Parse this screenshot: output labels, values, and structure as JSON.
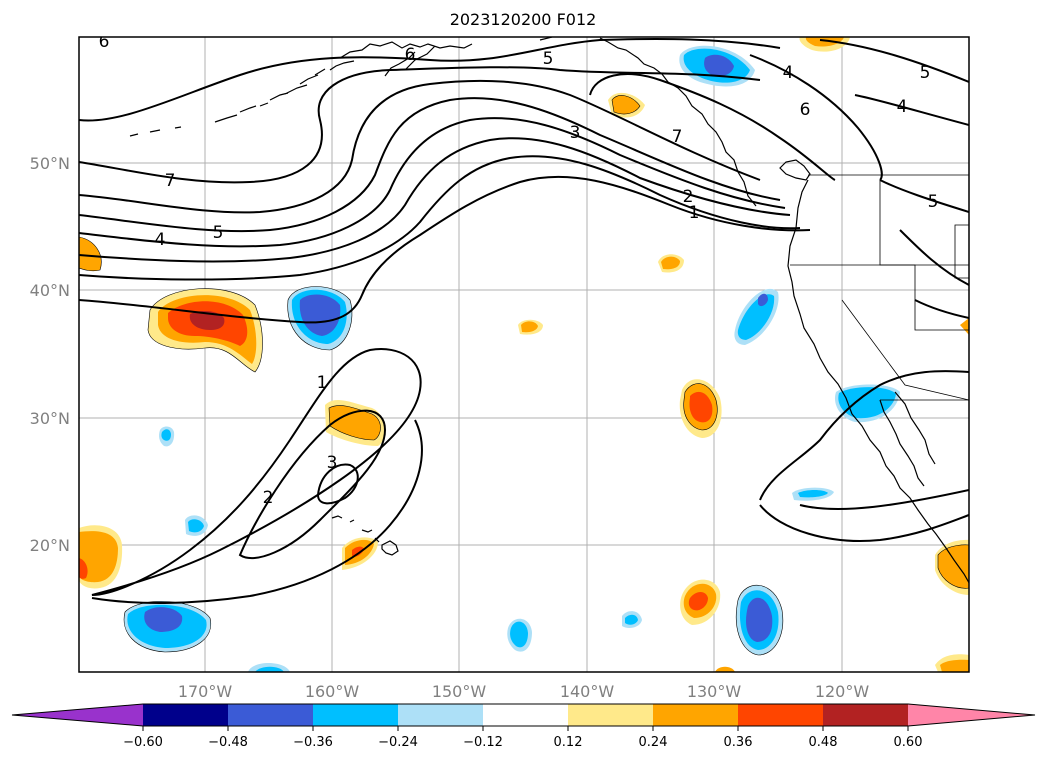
{
  "title": "2023120200 F012",
  "lat_labels": [
    "50°N",
    "40°N",
    "30°N",
    "20°N"
  ],
  "lon_labels": [
    "170°W",
    "160°W",
    "150°W",
    "140°W",
    "130°W",
    "120°W"
  ],
  "contour_labels": [
    "5",
    "6",
    "6",
    "4",
    "5",
    "3",
    "7",
    "2",
    "1",
    "7",
    "4",
    "5",
    "1",
    "2",
    "3",
    "6",
    "4",
    "5"
  ],
  "colorbar": {
    "ticks": [
      "−0.60",
      "−0.48",
      "−0.36",
      "−0.24",
      "−0.12",
      "0.12",
      "0.24",
      "0.36",
      "0.48",
      "0.60"
    ],
    "colors": [
      "#9932cc",
      "#00008b",
      "#3b5bd6",
      "#00bfff",
      "#ade0f7",
      "#ffffff",
      "#ffe98a",
      "#ffa500",
      "#ff4500",
      "#b22222",
      "#ff85a8"
    ],
    "extend": "both"
  },
  "colors": {
    "orange": "#ffa500",
    "light_yellow": "#ffe98a",
    "red_orange": "#ff4500",
    "dark_red": "#b22222",
    "deep_sky_blue": "#00bfff",
    "light_blue": "#ade0f7",
    "royal_blue": "#3b5bd6"
  }
}
